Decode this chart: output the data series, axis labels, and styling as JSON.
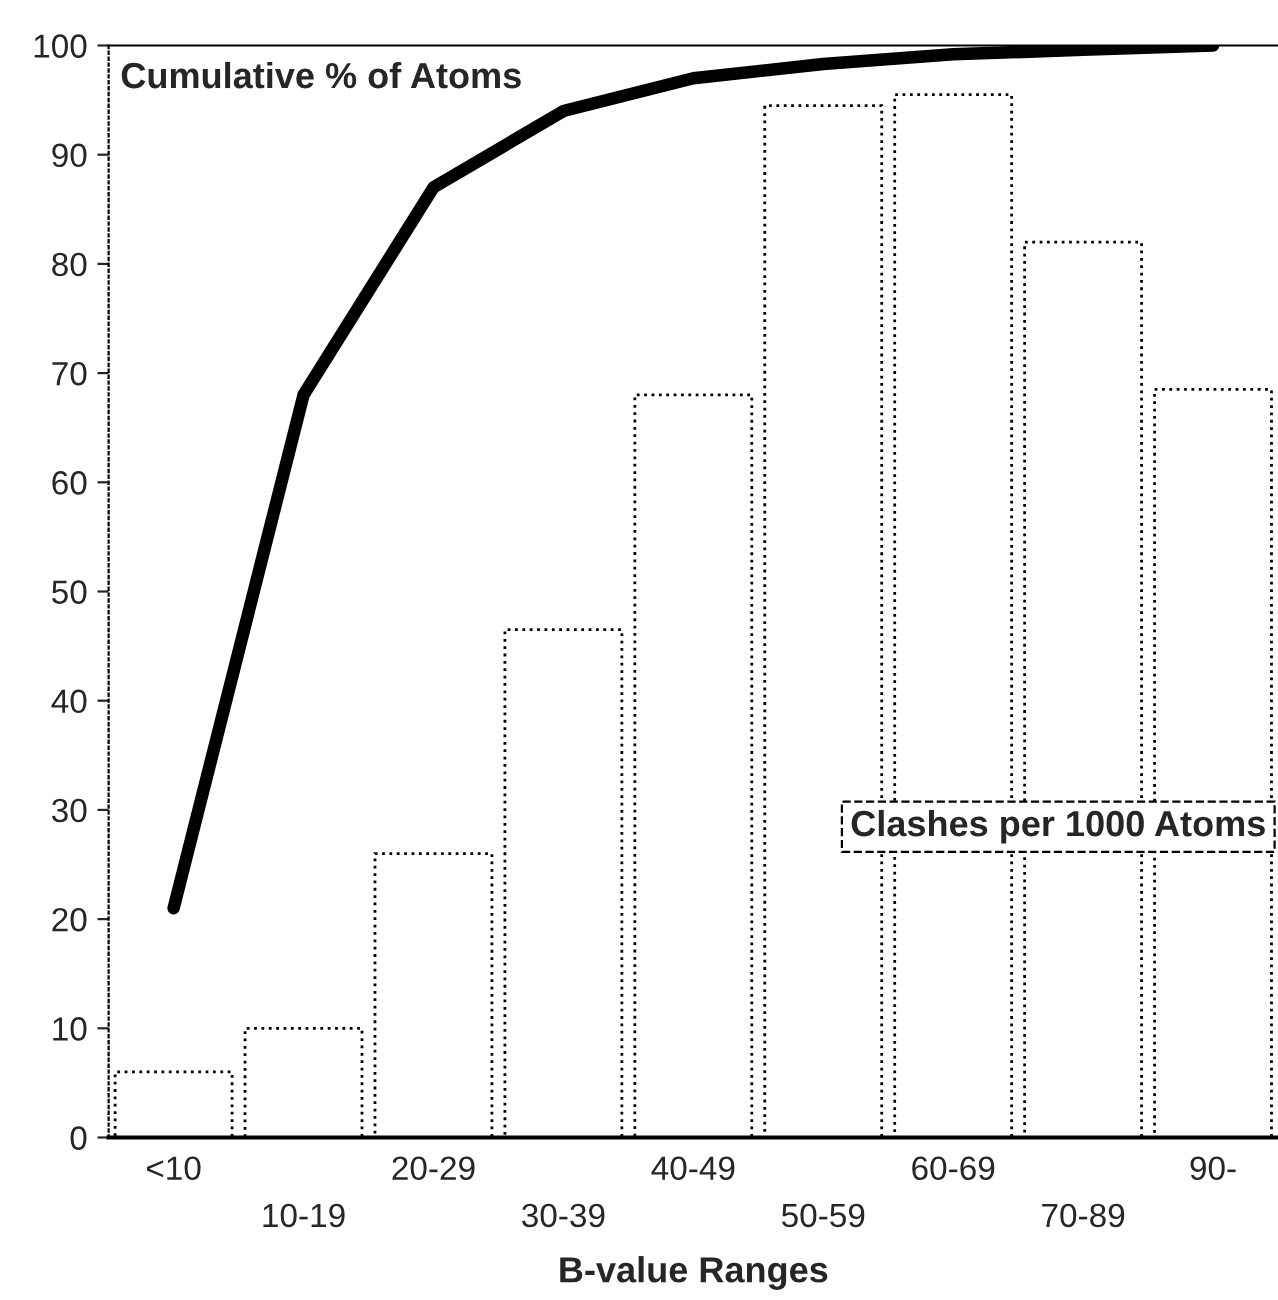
{
  "chart_data": {
    "type": "bar",
    "xlabel": "B-value Ranges",
    "categories": [
      "<10",
      "10-19",
      "20-29",
      "30-39",
      "40-49",
      "50-59",
      "60-69",
      "70-89",
      "90-"
    ],
    "series": [
      {
        "name": "Clashes per 1000 Atoms",
        "color": "#ffffff",
        "values": [
          6,
          10,
          26,
          46.5,
          68,
          94.5,
          95.5,
          82,
          68.5
        ]
      },
      {
        "name": "Cumulative % of Atoms",
        "type": "line",
        "color": "#000000",
        "values": [
          21,
          68,
          87,
          94,
          97,
          98.3,
          99.2,
          99.6,
          100
        ]
      }
    ],
    "ylim": [
      0,
      100
    ],
    "yticks": [
      0,
      10,
      20,
      30,
      40,
      50,
      60,
      70,
      80,
      90,
      100
    ],
    "grid": false,
    "legend": false
  }
}
